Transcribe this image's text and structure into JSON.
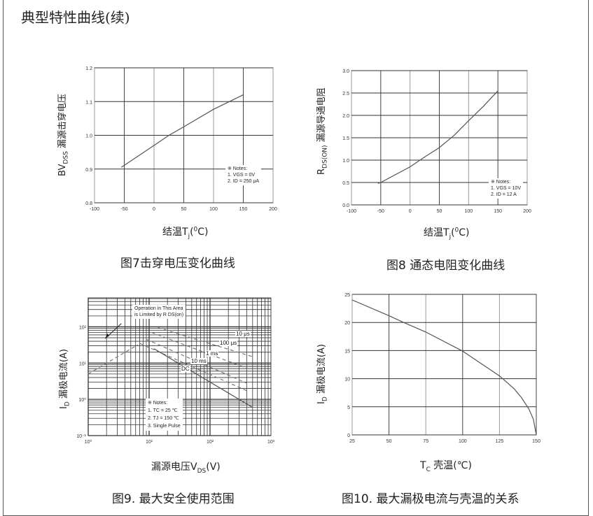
{
  "page_title": "典型特性曲线(续)",
  "chart_data": [
    {
      "type": "line",
      "caption": "图7击穿电压变化曲线",
      "xlabel": {
        "main": "结温T",
        "sub": "j",
        "mid": "(",
        "sup": "0",
        "end": "C)"
      },
      "ylabel": {
        "main": "BV",
        "sub": "DSS",
        "end": " 漏源击穿电压"
      },
      "xlim": [
        -100,
        200
      ],
      "ylim": [
        0.8,
        1.2
      ],
      "xticks": [
        -100,
        -50,
        0,
        50,
        100,
        150,
        200
      ],
      "xtick_labels": [
        "-100",
        "-50",
        "0",
        "50",
        "100",
        "150",
        "200"
      ],
      "yticks": [
        0.8,
        0.9,
        1.0,
        1.1,
        1.2
      ],
      "ytick_labels": [
        "0.8",
        "0.9",
        "1.0",
        "1.1",
        "1.2"
      ],
      "grid": true,
      "notes": [
        "※ Notes:",
        "1. VGS = 0V",
        "2. ID = 250 μA"
      ],
      "series": [
        {
          "x": [
            -55,
            0,
            25,
            50,
            100,
            150
          ],
          "y": [
            0.905,
            0.97,
            1.0,
            1.025,
            1.077,
            1.12
          ]
        }
      ]
    },
    {
      "type": "line",
      "caption": "图8 通态电阻变化曲线",
      "xlabel": {
        "main": "结温T",
        "sub": "j",
        "mid": "(",
        "sup": "0",
        "end": "C)"
      },
      "ylabel": {
        "main": "R",
        "sub": "DS(ON)",
        "end": " 漏源导通电阻"
      },
      "xlim": [
        -100,
        200
      ],
      "ylim": [
        0.0,
        3.0
      ],
      "xticks": [
        -100,
        -50,
        0,
        50,
        100,
        150,
        200
      ],
      "xtick_labels": [
        "-100",
        "-50",
        "0",
        "50",
        "100",
        "150",
        "200"
      ],
      "yticks": [
        0,
        0.5,
        1.0,
        1.5,
        2.0,
        2.5,
        3.0
      ],
      "ytick_labels": [
        "0.0",
        "0.5",
        "1.0",
        "1.5",
        "2.0",
        "2.5",
        "3.0"
      ],
      "grid": true,
      "notes": [
        "※ Notes:",
        "1. VGS = 10V",
        "2. ID = 12 A"
      ],
      "series": [
        {
          "x": [
            -55,
            -50,
            0,
            25,
            50,
            75,
            100,
            125,
            150
          ],
          "y": [
            0.48,
            0.5,
            0.85,
            1.07,
            1.28,
            1.55,
            1.88,
            2.2,
            2.55
          ]
        }
      ]
    },
    {
      "type": "line",
      "scale": "log-log",
      "caption": "图9. 最大安全使用范围",
      "xlabel": {
        "main": "漏源电压V",
        "sub": "DS",
        "end": "(V)"
      },
      "ylabel": {
        "main": "I",
        "sub": "D",
        "end": " 漏极电流(A)"
      },
      "xlim": [
        1,
        1000
      ],
      "ylim": [
        0.1,
        630
      ],
      "xticks": [
        1,
        10,
        100,
        1000
      ],
      "xtick_labels": [
        "10⁰",
        "10¹",
        "10²",
        "10³"
      ],
      "yticks": [
        0.1,
        1,
        10,
        100
      ],
      "ytick_labels": [
        "10⁻¹",
        "10⁰",
        "10¹",
        "10²"
      ],
      "grid": true,
      "annotation": [
        "Operation in This Area",
        "is Limited by R DS(on)"
      ],
      "notes": [
        "※ Notes:",
        "1. TC = 25 ℃",
        "2. TJ = 150 ℃",
        "3. Single Pulse"
      ],
      "series": [
        {
          "name": "RDS(on) limit",
          "dashed": true,
          "x": [
            1,
            6.5
          ],
          "y": [
            5,
            32
          ]
        },
        {
          "name": "10 μs",
          "dashed": true,
          "x": [
            14,
            500
          ],
          "y": [
            95,
            15
          ]
        },
        {
          "name": "100 μs",
          "dashed": true,
          "x": [
            11,
            420
          ],
          "y": [
            70,
            7
          ]
        },
        {
          "name": "1 ms",
          "dashed": true,
          "x": [
            9,
            400
          ],
          "y": [
            45,
            2.8
          ]
        },
        {
          "name": "10 ms",
          "dashed": true,
          "x": [
            7,
            410
          ],
          "y": [
            35,
            1.7
          ]
        },
        {
          "name": "DC",
          "dashed": false,
          "x": [
            12,
            500
          ],
          "y": [
            25,
            0.6
          ]
        }
      ]
    },
    {
      "type": "line",
      "caption": "图10. 最大漏极电流与壳温的关系",
      "xlabel": {
        "main": "T",
        "sub": "C",
        "end": " 壳温(℃)"
      },
      "ylabel": {
        "main": "I",
        "sub": "D",
        "end": " 漏极电流(A)"
      },
      "xlim": [
        25,
        150
      ],
      "ylim": [
        0,
        25
      ],
      "xticks": [
        25,
        50,
        75,
        100,
        125,
        150
      ],
      "xtick_labels": [
        "25",
        "50",
        "75",
        "100",
        "125",
        "150"
      ],
      "yticks": [
        0,
        5,
        10,
        15,
        20,
        25
      ],
      "ytick_labels": [
        "0",
        "5",
        "10",
        "15",
        "20",
        "25"
      ],
      "grid": true,
      "series": [
        {
          "x": [
            25,
            50,
            60,
            75,
            100,
            125,
            135,
            140,
            145,
            148,
            150
          ],
          "y": [
            24,
            21.2,
            20,
            18.3,
            14.9,
            10.5,
            8.2,
            6.6,
            4.6,
            2.8,
            0
          ]
        }
      ]
    }
  ]
}
